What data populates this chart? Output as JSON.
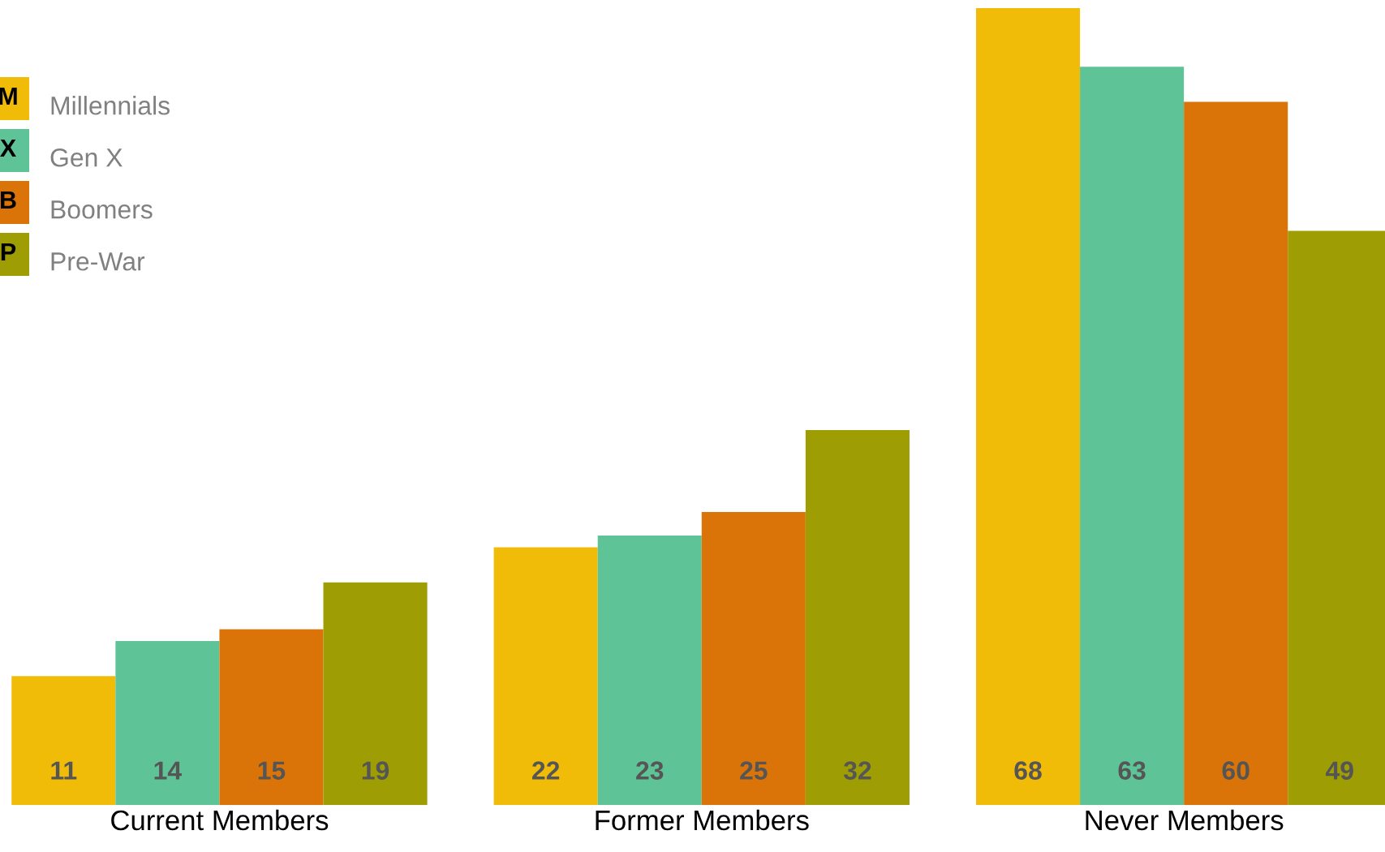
{
  "chart_data": {
    "type": "bar",
    "categories": [
      "Current Members",
      "Former Members",
      "Never Members"
    ],
    "series": [
      {
        "name": "Millennials",
        "color": "#f0bc08",
        "values": [
          11,
          22,
          68
        ]
      },
      {
        "name": "Gen X",
        "color": "#5ec397",
        "values": [
          14,
          23,
          63
        ]
      },
      {
        "name": "Boomers",
        "color": "#db7408",
        "values": [
          15,
          25,
          60
        ]
      },
      {
        "name": "Pre-War",
        "color": "#9e9e04",
        "values": [
          19,
          32,
          49
        ]
      }
    ],
    "annotations": [
      "M",
      "X",
      "B",
      "P"
    ],
    "data_labels": true,
    "legend": "top left",
    "grid": false
  }
}
